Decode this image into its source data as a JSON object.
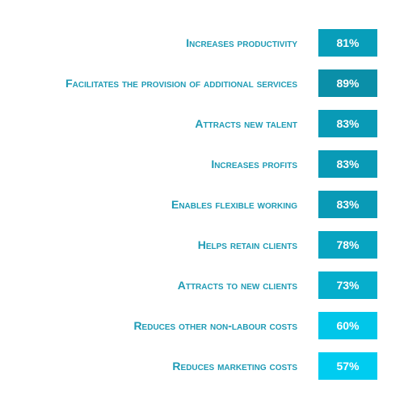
{
  "chart_data": {
    "type": "table",
    "categories": [
      "Increases productivity",
      "Facilitates the provision of additional services",
      "Attracts new talent",
      "Increases profits",
      "Enables flexible working",
      "Helps retain clients",
      "Attracts to new clients",
      "Reduces other non-labour costs",
      "Reduces marketing costs"
    ],
    "values": [
      81,
      89,
      83,
      83,
      83,
      78,
      73,
      60,
      57
    ],
    "value_labels": [
      "81%",
      "89%",
      "83%",
      "83%",
      "83%",
      "78%",
      "73%",
      "60%",
      "57%"
    ],
    "colors": {
      "label": "#1f9bb5",
      "value_text": "#ffffff",
      "box_high": "#0b8fa8",
      "box_low": "#00ccf0"
    },
    "grid": false,
    "legend": "none"
  }
}
